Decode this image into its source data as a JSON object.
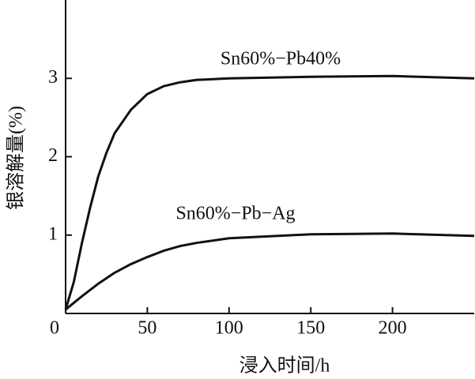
{
  "chart_data": {
    "type": "line",
    "x_label": "浸入时间/h",
    "y_label": "银溶解量(%)",
    "xlim": [
      0,
      250
    ],
    "ylim": [
      0,
      4
    ],
    "xticks": [
      0,
      50,
      100,
      150,
      200
    ],
    "yticks": [
      1,
      2,
      3
    ],
    "series": [
      {
        "name": "Sn60%−Pb40%",
        "color": "#111111",
        "x": [
          0,
          5,
          10,
          15,
          20,
          25,
          30,
          40,
          50,
          60,
          70,
          80,
          100,
          150,
          200,
          250
        ],
        "values": [
          0.05,
          0.4,
          0.9,
          1.35,
          1.75,
          2.05,
          2.3,
          2.6,
          2.8,
          2.9,
          2.95,
          2.98,
          3.0,
          3.02,
          3.03,
          3.0
        ]
      },
      {
        "name": "Sn60%−Pb−Ag",
        "color": "#111111",
        "x": [
          0,
          10,
          20,
          30,
          40,
          50,
          60,
          70,
          80,
          100,
          150,
          200,
          250
        ],
        "values": [
          0.05,
          0.22,
          0.38,
          0.52,
          0.63,
          0.72,
          0.8,
          0.86,
          0.9,
          0.96,
          1.01,
          1.02,
          0.99
        ]
      }
    ]
  }
}
